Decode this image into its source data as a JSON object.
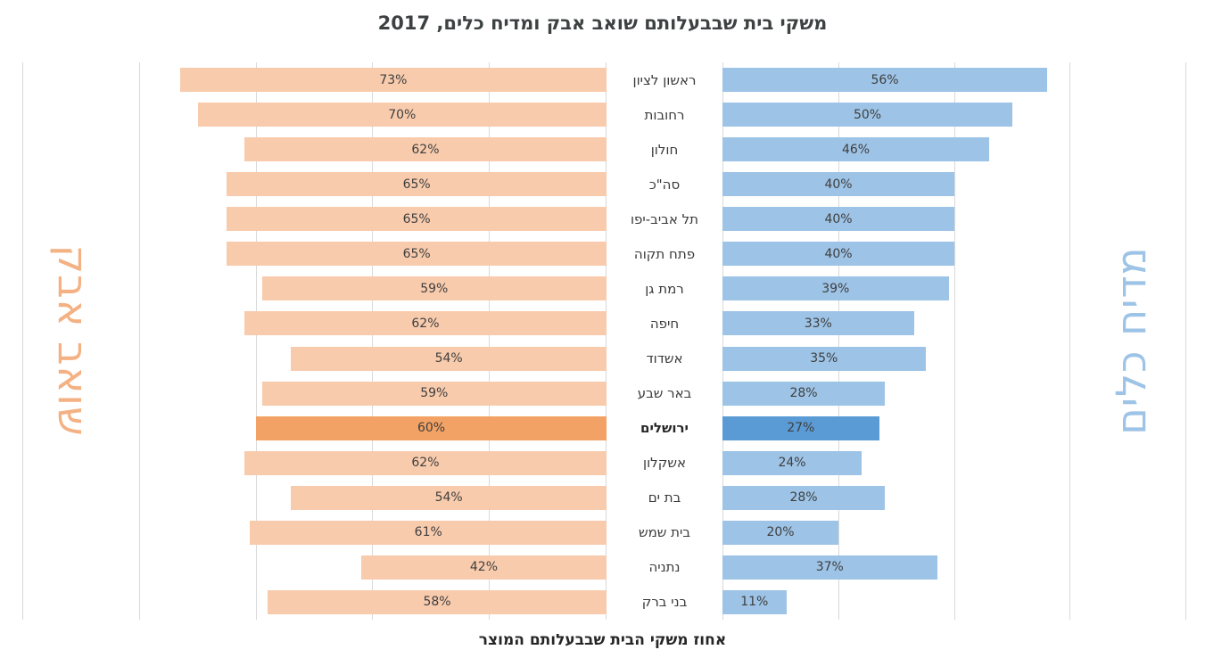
{
  "title": "משקי בית שבבעלותם שואב אבק ומדיח כלים, 2017",
  "xlabel": "אחוז משקי הבית שבבעלותם המוצר",
  "chart_data": {
    "type": "bar",
    "variant": "tornado",
    "title": "משקי בית שבבעלותם שואב אבק ומדיח כלים, 2017",
    "xlabel": "אחוז משקי הבית שבבעלותם המוצר",
    "categories": [
      "ראשון לציון",
      "רחובות",
      "חולון",
      "סה\"כ",
      "תל אביב-יפו",
      "פתח תקוה",
      "רמת גן",
      "חיפה",
      "אשדוד",
      "באר שבע",
      "ירושלים",
      "אשקלון",
      "בת ים",
      "בית שמש",
      "נתניה",
      "בני ברק"
    ],
    "series": [
      {
        "name": "שואב אבק",
        "side": "left",
        "values": [
          73,
          70,
          62,
          65,
          65,
          65,
          59,
          62,
          54,
          59,
          60,
          62,
          54,
          61,
          42,
          58
        ],
        "axis_max": 100
      },
      {
        "name": "מדיח כלים",
        "side": "right",
        "values": [
          56,
          50,
          46,
          40,
          40,
          40,
          39,
          33,
          35,
          28,
          27,
          24,
          28,
          20,
          37,
          11
        ],
        "axis_max": 80
      }
    ],
    "highlight_category": "ירושלים",
    "value_suffix": "%",
    "x_gridline_step": 20,
    "grid": true,
    "legend_position": "rotated-side-labels"
  },
  "colors": {
    "vacuum_bar": "#F8CBAD",
    "vacuum_highlight": "#F2A264",
    "dishwasher_bar": "#9DC3E6",
    "dishwasher_highlight": "#5B9BD5",
    "gridline": "#D9D9D9",
    "left_side_label": "#F4B183",
    "right_side_label": "#9DC3E6",
    "title_text": "#3D4142",
    "value_text": "#3F3F3F"
  }
}
